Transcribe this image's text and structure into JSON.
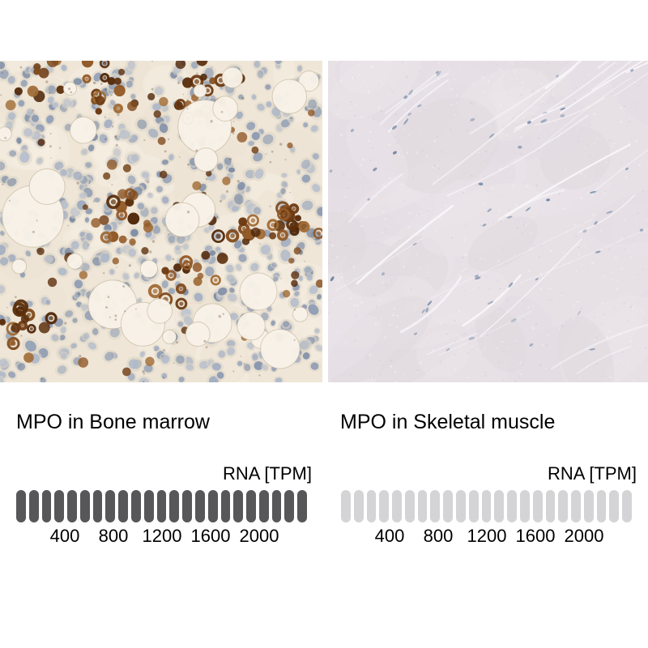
{
  "panels": [
    {
      "id": "bone-marrow",
      "title": "MPO in Bone marrow",
      "scale_label": "RNA [TPM]",
      "ticks": [
        "400",
        "800",
        "1200",
        "1600",
        "2000"
      ],
      "gauge": {
        "segments": 23,
        "filled_segments": 23,
        "filled_color": "#57575a",
        "empty_color": "#d4d4d6"
      },
      "tissue": {
        "kind": "bone-marrow-ihc",
        "background": "#efe6d8",
        "mottle_colors": [
          "#ece2d1",
          "#f5eee1"
        ],
        "nucleus_palette": [
          "#9fabc0",
          "#8b99b1",
          "#aeb8c9",
          "#7d8ca6",
          "#93a0b6",
          "#b9c0cd"
        ],
        "halo_color": "#dcd5c6",
        "stain_palette": [
          "#6e3b13",
          "#7f4b1d",
          "#925a28",
          "#5c2f0d",
          "#a06a35",
          "#4f2608"
        ],
        "vacuole_color": "#f8f2e8",
        "vacuole_edge": "rgba(175,158,128,0.45)",
        "speckle_color": "rgba(80,58,38,0.3)"
      }
    },
    {
      "id": "skeletal-muscle",
      "title": "MPO in Skeletal muscle",
      "scale_label": "RNA [TPM]",
      "ticks": [
        "400",
        "800",
        "1200",
        "1600",
        "2000"
      ],
      "gauge": {
        "segments": 23,
        "filled_segments": 0,
        "filled_color": "#57575a",
        "empty_color": "#d4d4d6"
      },
      "tissue": {
        "kind": "skeletal-muscle-ihc",
        "background": "#e7e1e6",
        "patch_palette": [
          "#ece6ea",
          "#e0dade",
          "#eae4e9",
          "#e3dde3"
        ],
        "streak_color": "#f9f6f9",
        "nucleus_palette": [
          "#7e90aa",
          "#687f9e",
          "#8d9cb3"
        ],
        "speckle_light": "rgba(255,255,255,0.3)",
        "speckle_dark": "rgba(190,180,195,0.3)"
      }
    }
  ],
  "chart_data": [
    {
      "type": "bar",
      "variant": "segmented-gauge",
      "title": "MPO in Bone marrow",
      "axis_label": "RNA [TPM]",
      "x_ticks": [
        400,
        800,
        1200,
        1600,
        2000
      ],
      "xlim": [
        0,
        2400
      ],
      "segments_total": 23,
      "segments_filled": 23,
      "reading": "gauge fully dark: high MPO RNA expression, ~full scale (>2000 TPM)",
      "filled_color": "#57575a",
      "empty_color": "#d4d4d6",
      "grid": false,
      "legend": false
    },
    {
      "type": "bar",
      "variant": "segmented-gauge",
      "title": "MPO in Skeletal muscle",
      "axis_label": "RNA [TPM]",
      "x_ticks": [
        400,
        800,
        1200,
        1600,
        2000
      ],
      "xlim": [
        0,
        2400
      ],
      "segments_total": 23,
      "segments_filled": 0,
      "reading": "gauge all light: negligible MPO RNA expression (~0 TPM)",
      "filled_color": "#57575a",
      "empty_color": "#d4d4d6",
      "grid": false,
      "legend": false
    }
  ]
}
